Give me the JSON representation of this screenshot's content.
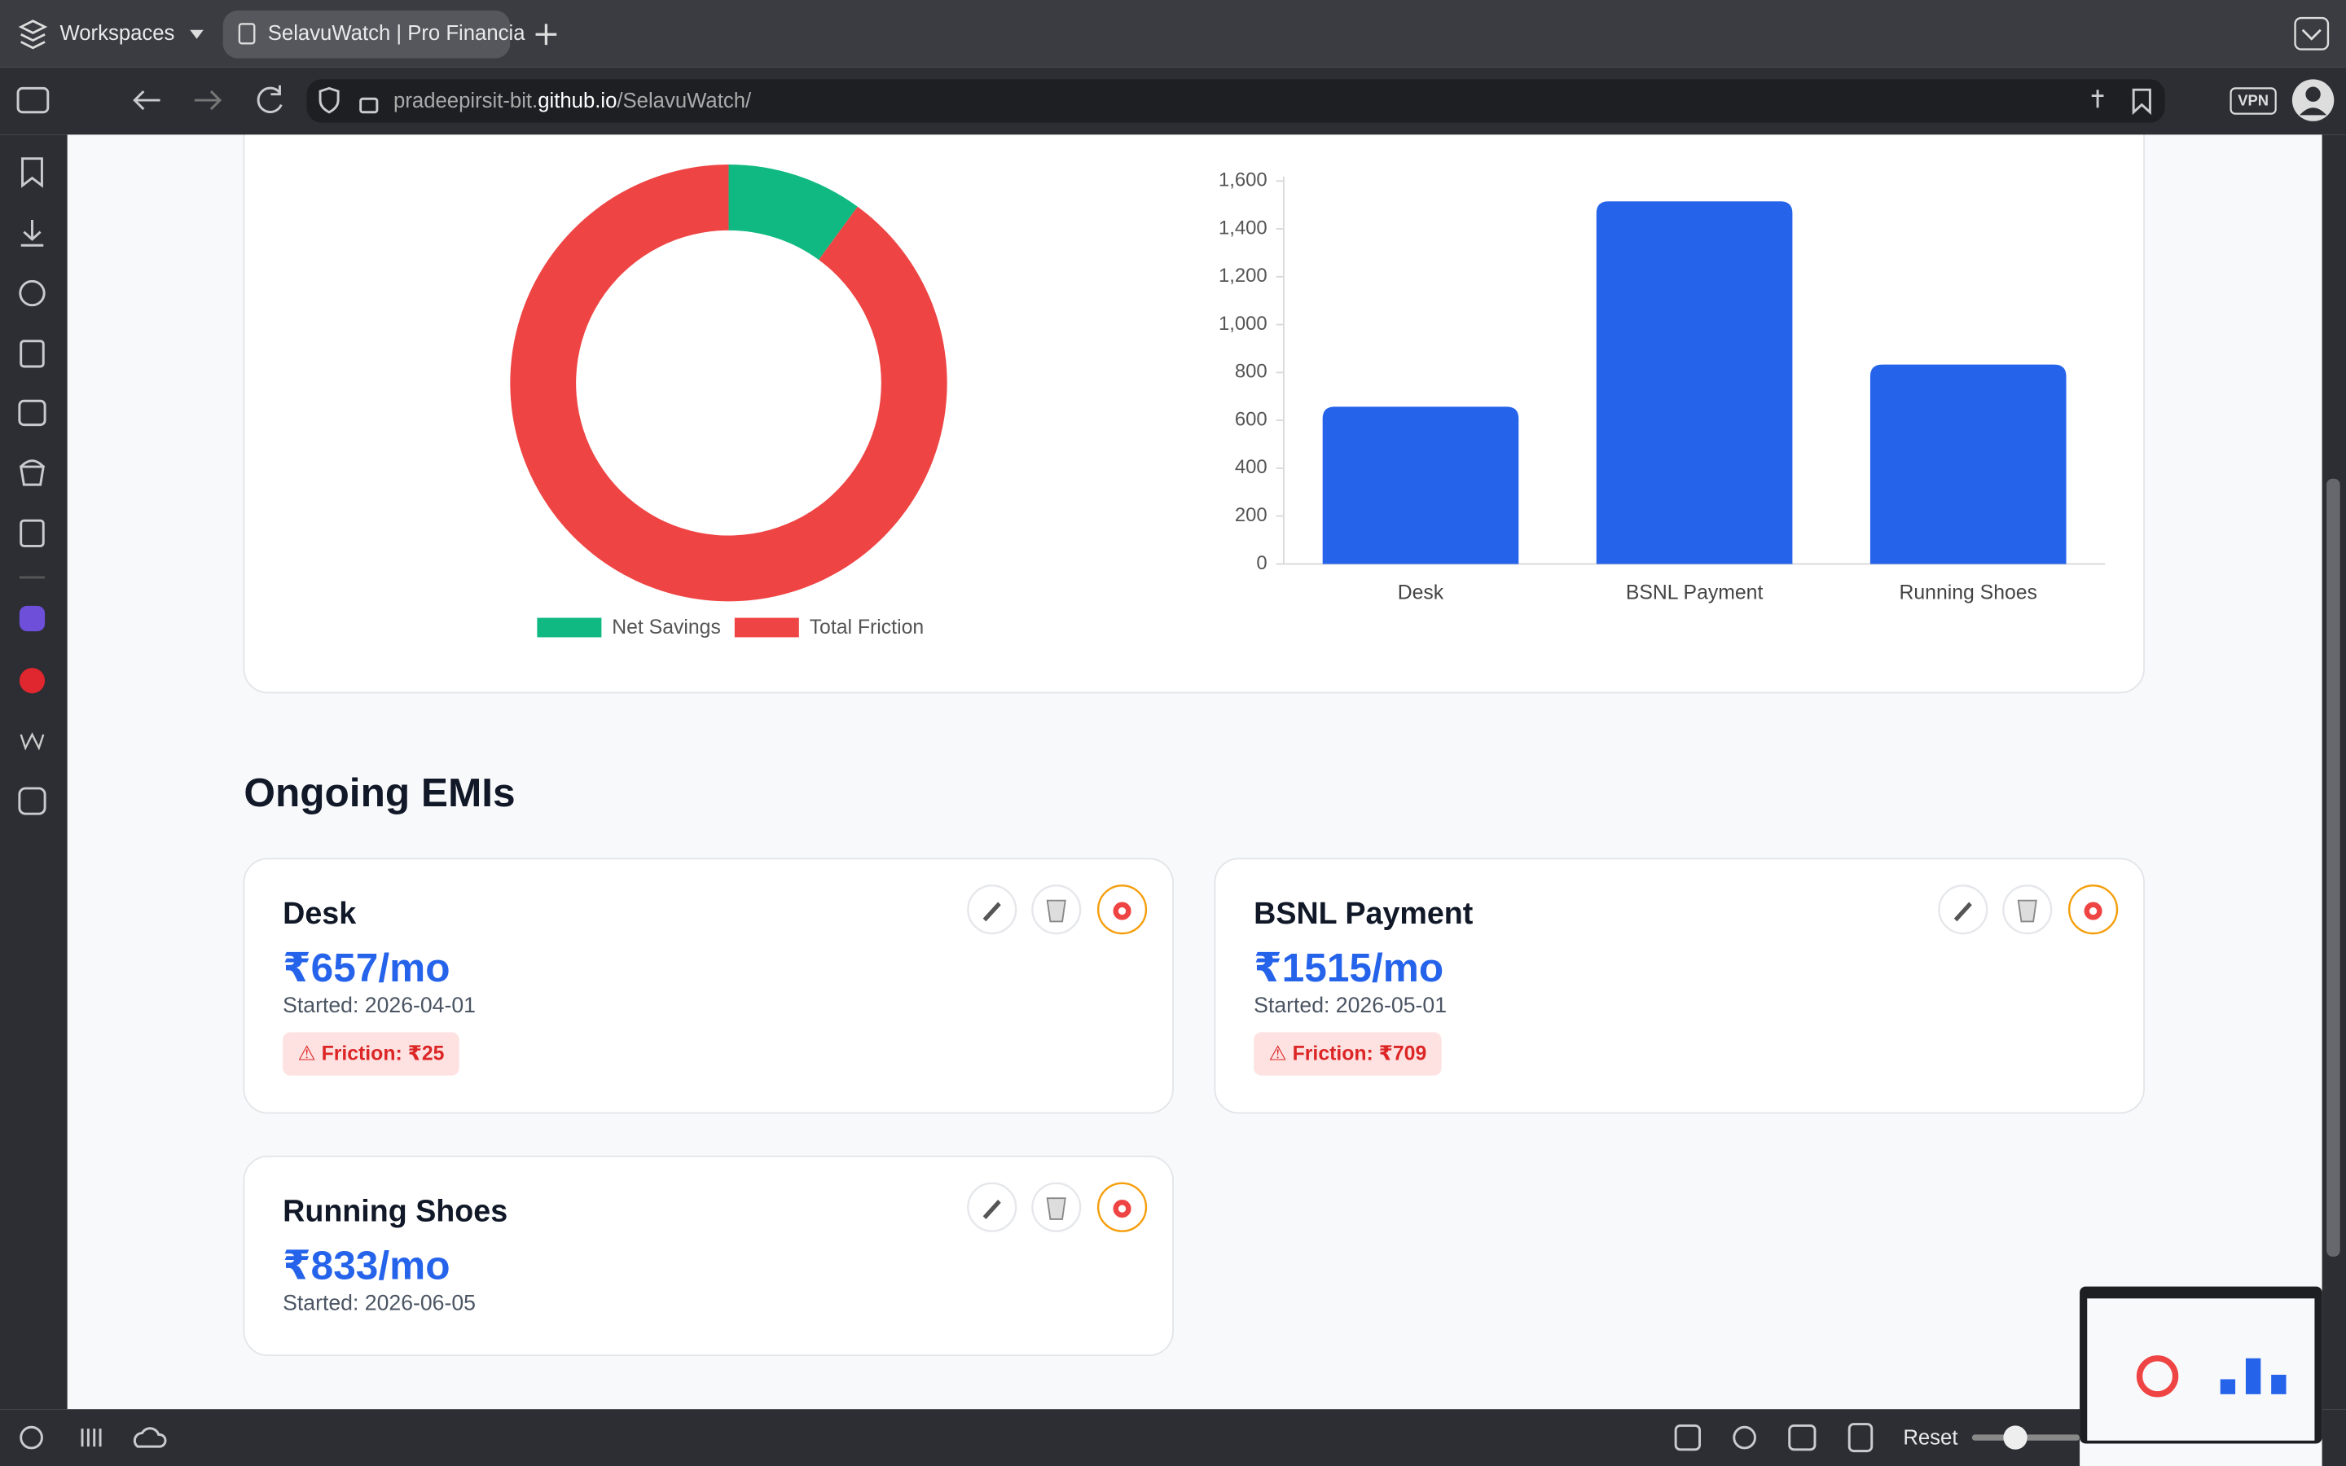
{
  "browser": {
    "workspaces": "Workspaces",
    "tab_title": "SelavuWatch | Pro Financia",
    "url": {
      "pre": "pradeepirsit-bit.",
      "host": "github.io",
      "post": "/SelavuWatch/"
    },
    "vpn": "VPN",
    "reset": "Reset"
  },
  "chart_data": [
    {
      "type": "pie",
      "donut": true,
      "categories": [
        "Net Savings",
        "Total Friction"
      ],
      "values": [
        82,
        734
      ],
      "colors": [
        "#10b981",
        "#ef4444"
      ],
      "legend": "bottom"
    },
    {
      "type": "bar",
      "categories": [
        "Desk",
        "BSNL Payment",
        "Running Shoes"
      ],
      "values": [
        657,
        1515,
        833
      ],
      "color": "#2563eb",
      "ylim": [
        0,
        1600
      ],
      "yticks": [
        0,
        200,
        400,
        600,
        800,
        {
          "value": 1000,
          "label": "1,000"
        },
        {
          "value": 1200,
          "label": "1,200"
        },
        {
          "value": 1400,
          "label": "1,400"
        },
        {
          "value": 1600,
          "label": "1,600"
        }
      ],
      "grid": false
    }
  ],
  "section_title": "Ongoing EMIs",
  "emis": [
    {
      "name": "Desk",
      "amount": "₹657/mo",
      "started": "Started: 2026-04-01",
      "friction": "⚠ Friction: ₹25"
    },
    {
      "name": "BSNL Payment",
      "amount": "₹1515/mo",
      "started": "Started: 2026-05-01",
      "friction": "⚠ Friction: ₹709"
    },
    {
      "name": "Running Shoes",
      "amount": "₹833/mo",
      "started": "Started: 2026-06-05"
    }
  ]
}
